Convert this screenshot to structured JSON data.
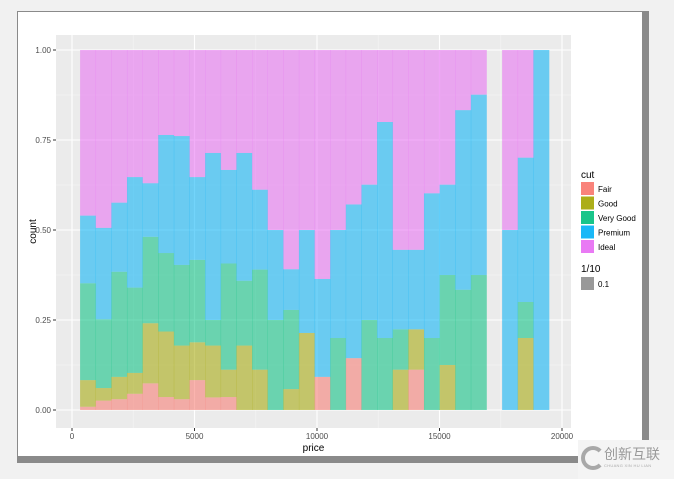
{
  "chart_data": {
    "type": "bar",
    "stacked": "fill",
    "xlabel": "price",
    "ylabel": "count",
    "xlim": [
      -800,
      20500
    ],
    "ylim": [
      -0.05,
      1.05
    ],
    "x_ticks": [
      0,
      5000,
      10000,
      15000,
      20000
    ],
    "x_tick_labels": [
      "0",
      "5000",
      "10000",
      "15000",
      "20000"
    ],
    "y_ticks": [
      0,
      0.25,
      0.5,
      0.75,
      1.0
    ],
    "y_tick_labels": [
      "0.00",
      "0.25",
      "0.50",
      "0.75",
      "1.00"
    ],
    "grid": true,
    "legend_position": "right",
    "bin_start": 330,
    "bin_width": 638,
    "series_names": [
      "Fair",
      "Good",
      "Very Good",
      "Premium",
      "Ideal"
    ],
    "colors": [
      "#F8766D",
      "#A3A500",
      "#00BF7D",
      "#00B0F6",
      "#E76BF3"
    ],
    "alpha": 0.55,
    "cumulative_tops": [
      [
        0.009,
        0.083,
        0.352,
        0.54
      ],
      [
        0.026,
        0.061,
        0.252,
        0.506
      ],
      [
        0.03,
        0.092,
        0.384,
        0.576
      ],
      [
        0.045,
        0.103,
        0.34,
        0.647
      ],
      [
        0.074,
        0.241,
        0.481,
        0.63
      ],
      [
        0.036,
        0.218,
        0.436,
        0.764
      ],
      [
        0.03,
        0.179,
        0.403,
        0.761
      ],
      [
        0.083,
        0.188,
        0.417,
        0.647
      ],
      [
        0.035,
        0.179,
        0.25,
        0.714
      ],
      [
        0.036,
        0.112,
        0.407,
        0.667
      ],
      [
        0,
        0.179,
        0.359,
        0.714
      ],
      [
        0,
        0.112,
        0.39,
        0.612
      ],
      [
        0,
        0,
        0.25,
        0.5
      ],
      [
        0,
        0.058,
        0.278,
        0.391
      ],
      [
        0,
        0.214,
        0.214,
        0.5
      ],
      [
        0.092,
        0.092,
        0.092,
        0.364
      ],
      [
        0,
        0,
        0.2,
        0.5
      ],
      [
        0.144,
        0.144,
        0.144,
        0.571
      ],
      [
        0,
        0,
        0.25,
        0.626
      ],
      [
        0,
        0,
        0.2,
        0.8
      ],
      [
        0,
        0.112,
        0.224,
        0.445
      ],
      [
        0.112,
        0.224,
        0.224,
        0.445
      ],
      [
        0,
        0,
        0.2,
        0.602
      ],
      [
        0,
        0.125,
        0.375,
        0.626
      ],
      [
        0,
        0,
        0.334,
        0.833
      ],
      [
        0,
        0,
        0.375,
        0.876
      ],
      null,
      [
        0,
        0,
        0,
        0.5
      ],
      [
        0,
        0.2,
        0.3,
        0.701
      ],
      [
        0,
        0,
        0,
        1.0
      ]
    ],
    "legends": [
      {
        "title": "cut",
        "entries": [
          "Fair",
          "Good",
          "Very Good",
          "Premium",
          "Ideal"
        ]
      },
      {
        "title": "1/10",
        "entries": [
          "0.1"
        ],
        "color": "#999999"
      }
    ]
  },
  "logo": {
    "text": "创新互联",
    "subtext": "CHUANG XIN HU LIAN"
  }
}
